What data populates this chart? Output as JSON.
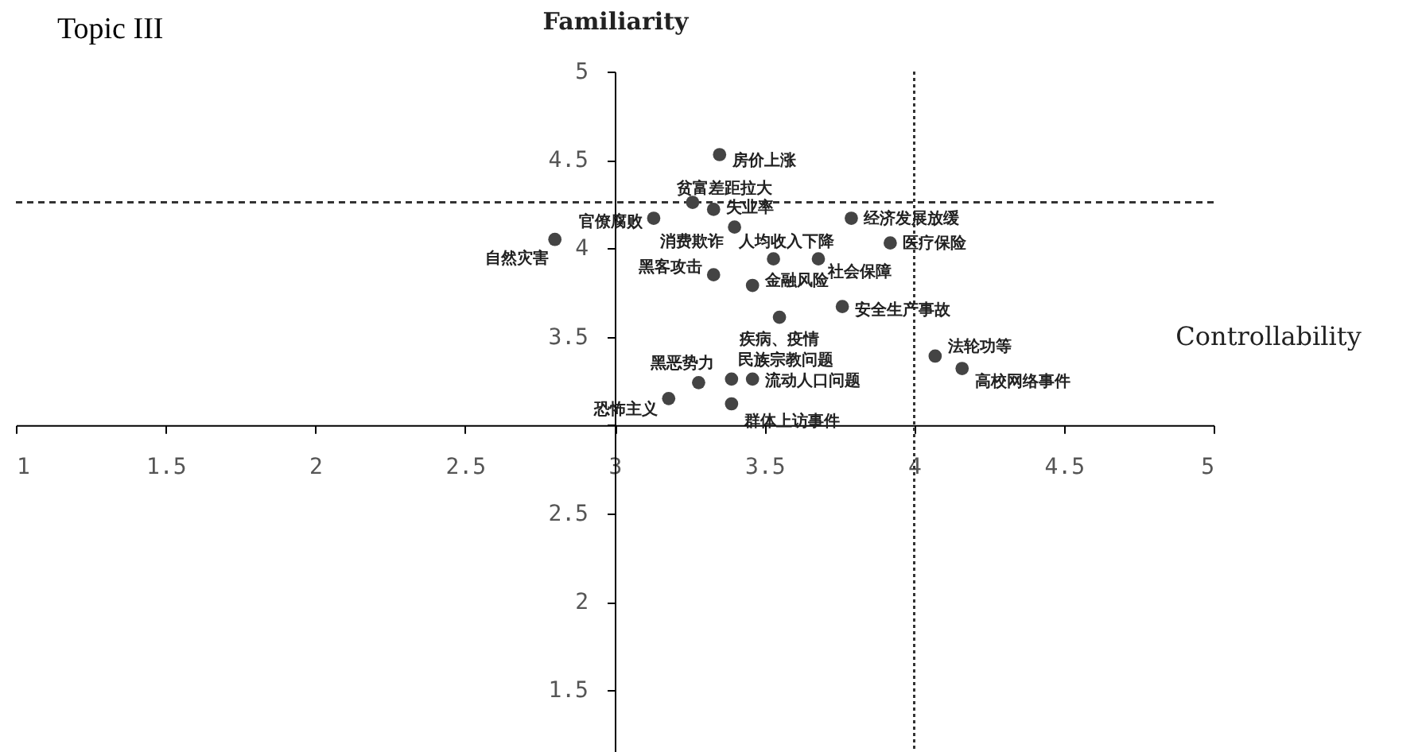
{
  "chart_data": {
    "type": "scatter",
    "title": "Topic III",
    "xlabel": "Controllability",
    "ylabel": "Familiarity",
    "x": [
      3.35,
      3.26,
      3.33,
      3.13,
      2.8,
      3.4,
      3.79,
      3.53,
      3.68,
      3.92,
      3.33,
      3.46,
      3.76,
      3.55,
      4.07,
      4.16,
      3.18,
      3.28,
      3.39,
      3.46,
      3.39
    ],
    "series": [
      {
        "color": "#444444",
        "values": [
          4.53,
          4.26,
          4.22,
          4.17,
          4.05,
          4.12,
          4.17,
          3.94,
          3.94,
          4.03,
          3.85,
          3.79,
          3.67,
          3.61,
          3.39,
          3.32,
          3.15,
          3.24,
          3.26,
          3.26,
          3.12
        ]
      }
    ],
    "annotations": [
      {
        "text": "房价上涨",
        "x": 3.35,
        "y": 4.53
      },
      {
        "text": "贫富差距拉大",
        "x": 3.26,
        "y": 4.26
      },
      {
        "text": "失业率",
        "x": 3.33,
        "y": 4.22
      },
      {
        "text": "官僚腐败",
        "x": 3.13,
        "y": 4.17
      },
      {
        "text": "自然灾害",
        "x": 2.8,
        "y": 4.05
      },
      {
        "text": "消费欺诈",
        "x": 3.4,
        "y": 4.12
      },
      {
        "text": "经济发展放缓",
        "x": 3.79,
        "y": 4.17
      },
      {
        "text": "人均收入下降",
        "x": 3.53,
        "y": 3.94
      },
      {
        "text": "社会保障",
        "x": 3.68,
        "y": 3.94
      },
      {
        "text": "医疗保险",
        "x": 3.92,
        "y": 4.03
      },
      {
        "text": "黑客攻击",
        "x": 3.33,
        "y": 3.85
      },
      {
        "text": "金融风险",
        "x": 3.46,
        "y": 3.79
      },
      {
        "text": "安全生产事故",
        "x": 3.76,
        "y": 3.67
      },
      {
        "text": "疾病、疫情",
        "x": 3.55,
        "y": 3.61
      },
      {
        "text": "法轮功等",
        "x": 4.07,
        "y": 3.39
      },
      {
        "text": "高校网络事件",
        "x": 4.16,
        "y": 3.32
      },
      {
        "text": "恐怖主义",
        "x": 3.18,
        "y": 3.15
      },
      {
        "text": "黑恶势力",
        "x": 3.28,
        "y": 3.24
      },
      {
        "text": "民族宗教问题",
        "x": 3.39,
        "y": 3.26
      },
      {
        "text": "流动人口问题",
        "x": 3.46,
        "y": 3.26
      },
      {
        "text": "群体上访事件",
        "x": 3.39,
        "y": 3.12
      }
    ],
    "xlim": [
      1,
      5
    ],
    "xticks": [
      1,
      1.5,
      2,
      2.5,
      3,
      3.5,
      4,
      4.5,
      5
    ],
    "ylim": [
      1.15,
      5
    ],
    "yticks": [
      1.5,
      2,
      2.5,
      {
        "value": 3,
        "label": null
      },
      3.5,
      4,
      4.5,
      5
    ],
    "ref_lines": [
      {
        "axis": "x",
        "value": 4,
        "line_style": "dotted"
      },
      {
        "axis": "y",
        "value": 4.26,
        "line_style": "dashed"
      }
    ],
    "marker": "circle",
    "grid": false
  }
}
